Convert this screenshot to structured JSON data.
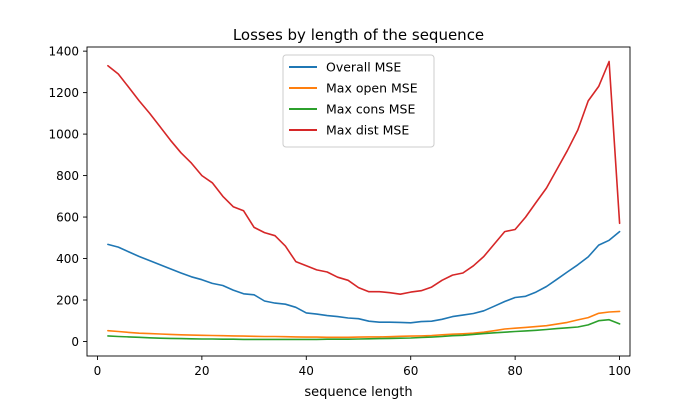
{
  "chart_data": {
    "type": "line",
    "title": "Losses by length of the sequence",
    "xlabel": "sequence length",
    "ylabel": "",
    "xlim": [
      -2,
      102
    ],
    "ylim": [
      -70,
      1420
    ],
    "xticks": [
      0,
      20,
      40,
      60,
      80,
      100
    ],
    "yticks": [
      0,
      200,
      400,
      600,
      800,
      1000,
      1200,
      1400
    ],
    "legend_position": "top-center",
    "x": [
      2,
      4,
      6,
      8,
      10,
      12,
      14,
      16,
      18,
      20,
      22,
      24,
      26,
      28,
      30,
      32,
      34,
      36,
      38,
      40,
      42,
      44,
      46,
      48,
      50,
      52,
      54,
      56,
      58,
      60,
      62,
      64,
      66,
      68,
      70,
      72,
      74,
      76,
      78,
      80,
      82,
      84,
      86,
      88,
      90,
      92,
      94,
      96,
      98,
      100
    ],
    "series": [
      {
        "name": "Overall MSE",
        "color": "#1f77b4",
        "values": [
          468,
          455,
          432,
          410,
          390,
          370,
          350,
          330,
          312,
          298,
          280,
          270,
          248,
          230,
          225,
          195,
          185,
          180,
          165,
          138,
          132,
          125,
          120,
          113,
          110,
          98,
          93,
          93,
          92,
          90,
          96,
          98,
          107,
          120,
          127,
          135,
          148,
          170,
          193,
          212,
          218,
          238,
          265,
          300,
          335,
          370,
          408,
          465,
          488,
          530
        ]
      },
      {
        "name": "Max open MSE",
        "color": "#ff7f0e",
        "values": [
          52,
          48,
          44,
          40,
          38,
          36,
          34,
          32,
          31,
          30,
          29,
          28,
          27,
          26,
          25,
          24,
          24,
          23,
          22,
          21,
          21,
          20,
          20,
          20,
          21,
          22,
          22,
          23,
          25,
          26,
          27,
          29,
          32,
          35,
          37,
          40,
          45,
          52,
          60,
          64,
          68,
          72,
          76,
          84,
          92,
          104,
          115,
          136,
          142,
          145
        ]
      },
      {
        "name": "Max cons MSE",
        "color": "#2ca02c",
        "values": [
          27,
          24,
          22,
          20,
          18,
          16,
          15,
          14,
          13,
          12,
          12,
          11,
          11,
          10,
          10,
          10,
          10,
          10,
          10,
          10,
          10,
          11,
          11,
          11,
          12,
          13,
          14,
          15,
          16,
          17,
          19,
          21,
          24,
          28,
          30,
          34,
          38,
          42,
          45,
          48,
          51,
          54,
          58,
          62,
          66,
          70,
          80,
          100,
          105,
          85
        ]
      },
      {
        "name": "Max dist MSE",
        "color": "#d62728",
        "values": [
          1330,
          1290,
          1225,
          1160,
          1100,
          1035,
          970,
          910,
          860,
          800,
          765,
          700,
          650,
          630,
          550,
          525,
          510,
          460,
          385,
          365,
          345,
          335,
          310,
          295,
          260,
          240,
          240,
          235,
          228,
          238,
          245,
          262,
          295,
          320,
          330,
          365,
          410,
          470,
          530,
          540,
          600,
          670,
          740,
          830,
          920,
          1020,
          1160,
          1230,
          1350,
          570
        ]
      }
    ]
  }
}
